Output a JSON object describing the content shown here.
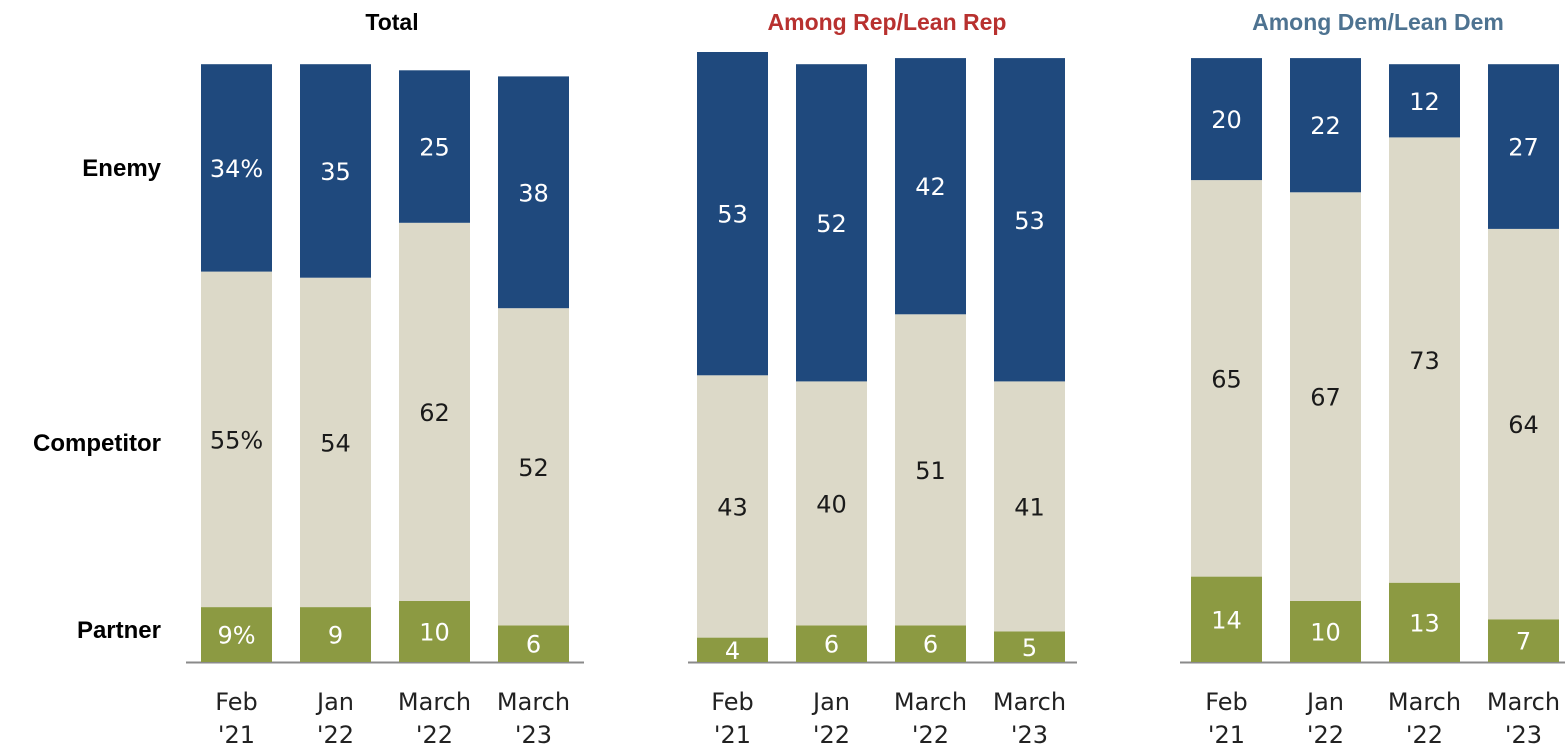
{
  "chart_data": {
    "type": "bar",
    "stacked": true,
    "row_labels": [
      "Enemy",
      "Competitor",
      "Partner"
    ],
    "colors": {
      "Enemy": "#1f497d",
      "Competitor": "#dcd9c8",
      "Partner": "#8c9a42",
      "title_total": "#000000",
      "title_rep": "#b8312f",
      "title_dem": "#4e7391"
    },
    "groups": [
      {
        "title": "Total",
        "title_color_key": "title_total",
        "bars": [
          {
            "x_top": "Feb",
            "x_bottom": "'21",
            "Partner": 9,
            "Competitor": 55,
            "Enemy": 34,
            "labels": {
              "Partner": "9%",
              "Competitor": "55%",
              "Enemy": "34%"
            }
          },
          {
            "x_top": "Jan",
            "x_bottom": "'22",
            "Partner": 9,
            "Competitor": 54,
            "Enemy": 35,
            "labels": {
              "Partner": "9",
              "Competitor": "54",
              "Enemy": "35"
            }
          },
          {
            "x_top": "March",
            "x_bottom": "'22",
            "Partner": 10,
            "Competitor": 62,
            "Enemy": 25,
            "labels": {
              "Partner": "10",
              "Competitor": "62",
              "Enemy": "25"
            }
          },
          {
            "x_top": "March",
            "x_bottom": "'23",
            "Partner": 6,
            "Competitor": 52,
            "Enemy": 38,
            "labels": {
              "Partner": "6",
              "Competitor": "52",
              "Enemy": "38"
            }
          }
        ]
      },
      {
        "title": "Among Rep/Lean Rep",
        "title_color_key": "title_rep",
        "bars": [
          {
            "x_top": "Feb",
            "x_bottom": "'21",
            "Partner": 4,
            "Competitor": 43,
            "Enemy": 53,
            "labels": {
              "Partner": "4",
              "Competitor": "43",
              "Enemy": "53"
            }
          },
          {
            "x_top": "Jan",
            "x_bottom": "'22",
            "Partner": 6,
            "Competitor": 40,
            "Enemy": 52,
            "labels": {
              "Partner": "6",
              "Competitor": "40",
              "Enemy": "52"
            }
          },
          {
            "x_top": "March",
            "x_bottom": "'22",
            "Partner": 6,
            "Competitor": 51,
            "Enemy": 42,
            "labels": {
              "Partner": "6",
              "Competitor": "51",
              "Enemy": "42"
            }
          },
          {
            "x_top": "March",
            "x_bottom": "'23",
            "Partner": 5,
            "Competitor": 41,
            "Enemy": 53,
            "labels": {
              "Partner": "5",
              "Competitor": "41",
              "Enemy": "53"
            }
          }
        ]
      },
      {
        "title": "Among Dem/Lean Dem",
        "title_color_key": "title_dem",
        "bars": [
          {
            "x_top": "Feb",
            "x_bottom": "'21",
            "Partner": 14,
            "Competitor": 65,
            "Enemy": 20,
            "labels": {
              "Partner": "14",
              "Competitor": "65",
              "Enemy": "20"
            }
          },
          {
            "x_top": "Jan",
            "x_bottom": "'22",
            "Partner": 10,
            "Competitor": 67,
            "Enemy": 22,
            "labels": {
              "Partner": "10",
              "Competitor": "67",
              "Enemy": "22"
            }
          },
          {
            "x_top": "March",
            "x_bottom": "'22",
            "Partner": 13,
            "Competitor": 73,
            "Enemy": 12,
            "labels": {
              "Partner": "13",
              "Competitor": "73",
              "Enemy": "12"
            }
          },
          {
            "x_top": "March",
            "x_bottom": "'23",
            "Partner": 7,
            "Competitor": 64,
            "Enemy": 27,
            "labels": {
              "Partner": "7",
              "Competitor": "64",
              "Enemy": "27"
            }
          }
        ]
      }
    ]
  }
}
